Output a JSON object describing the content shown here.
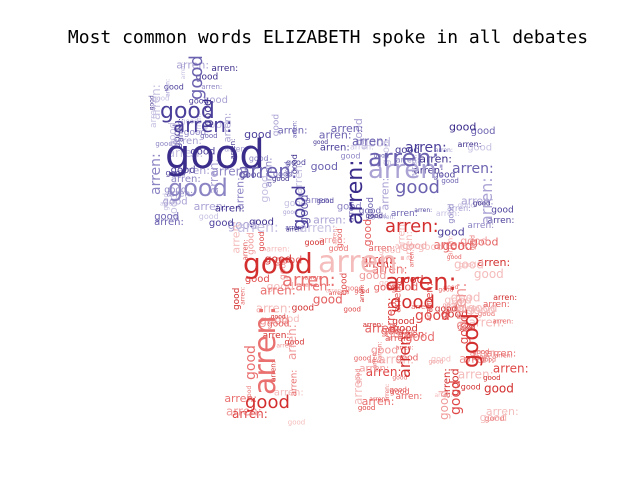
{
  "title": "Most common words ELIZABETH spoke in all debates",
  "wordcloud": {
    "words": [
      "good",
      "arren:"
    ],
    "palettes": {
      "upper": [
        "#3a2c8a",
        "#4a3f9a",
        "#6b62b0",
        "#8c85c4",
        "#aaa3d4",
        "#c7c1e2"
      ],
      "lower": [
        "#d32f2f",
        "#e04848",
        "#ea7070",
        "#f09a9a",
        "#f5bcbc",
        "#e56060"
      ]
    }
  }
}
